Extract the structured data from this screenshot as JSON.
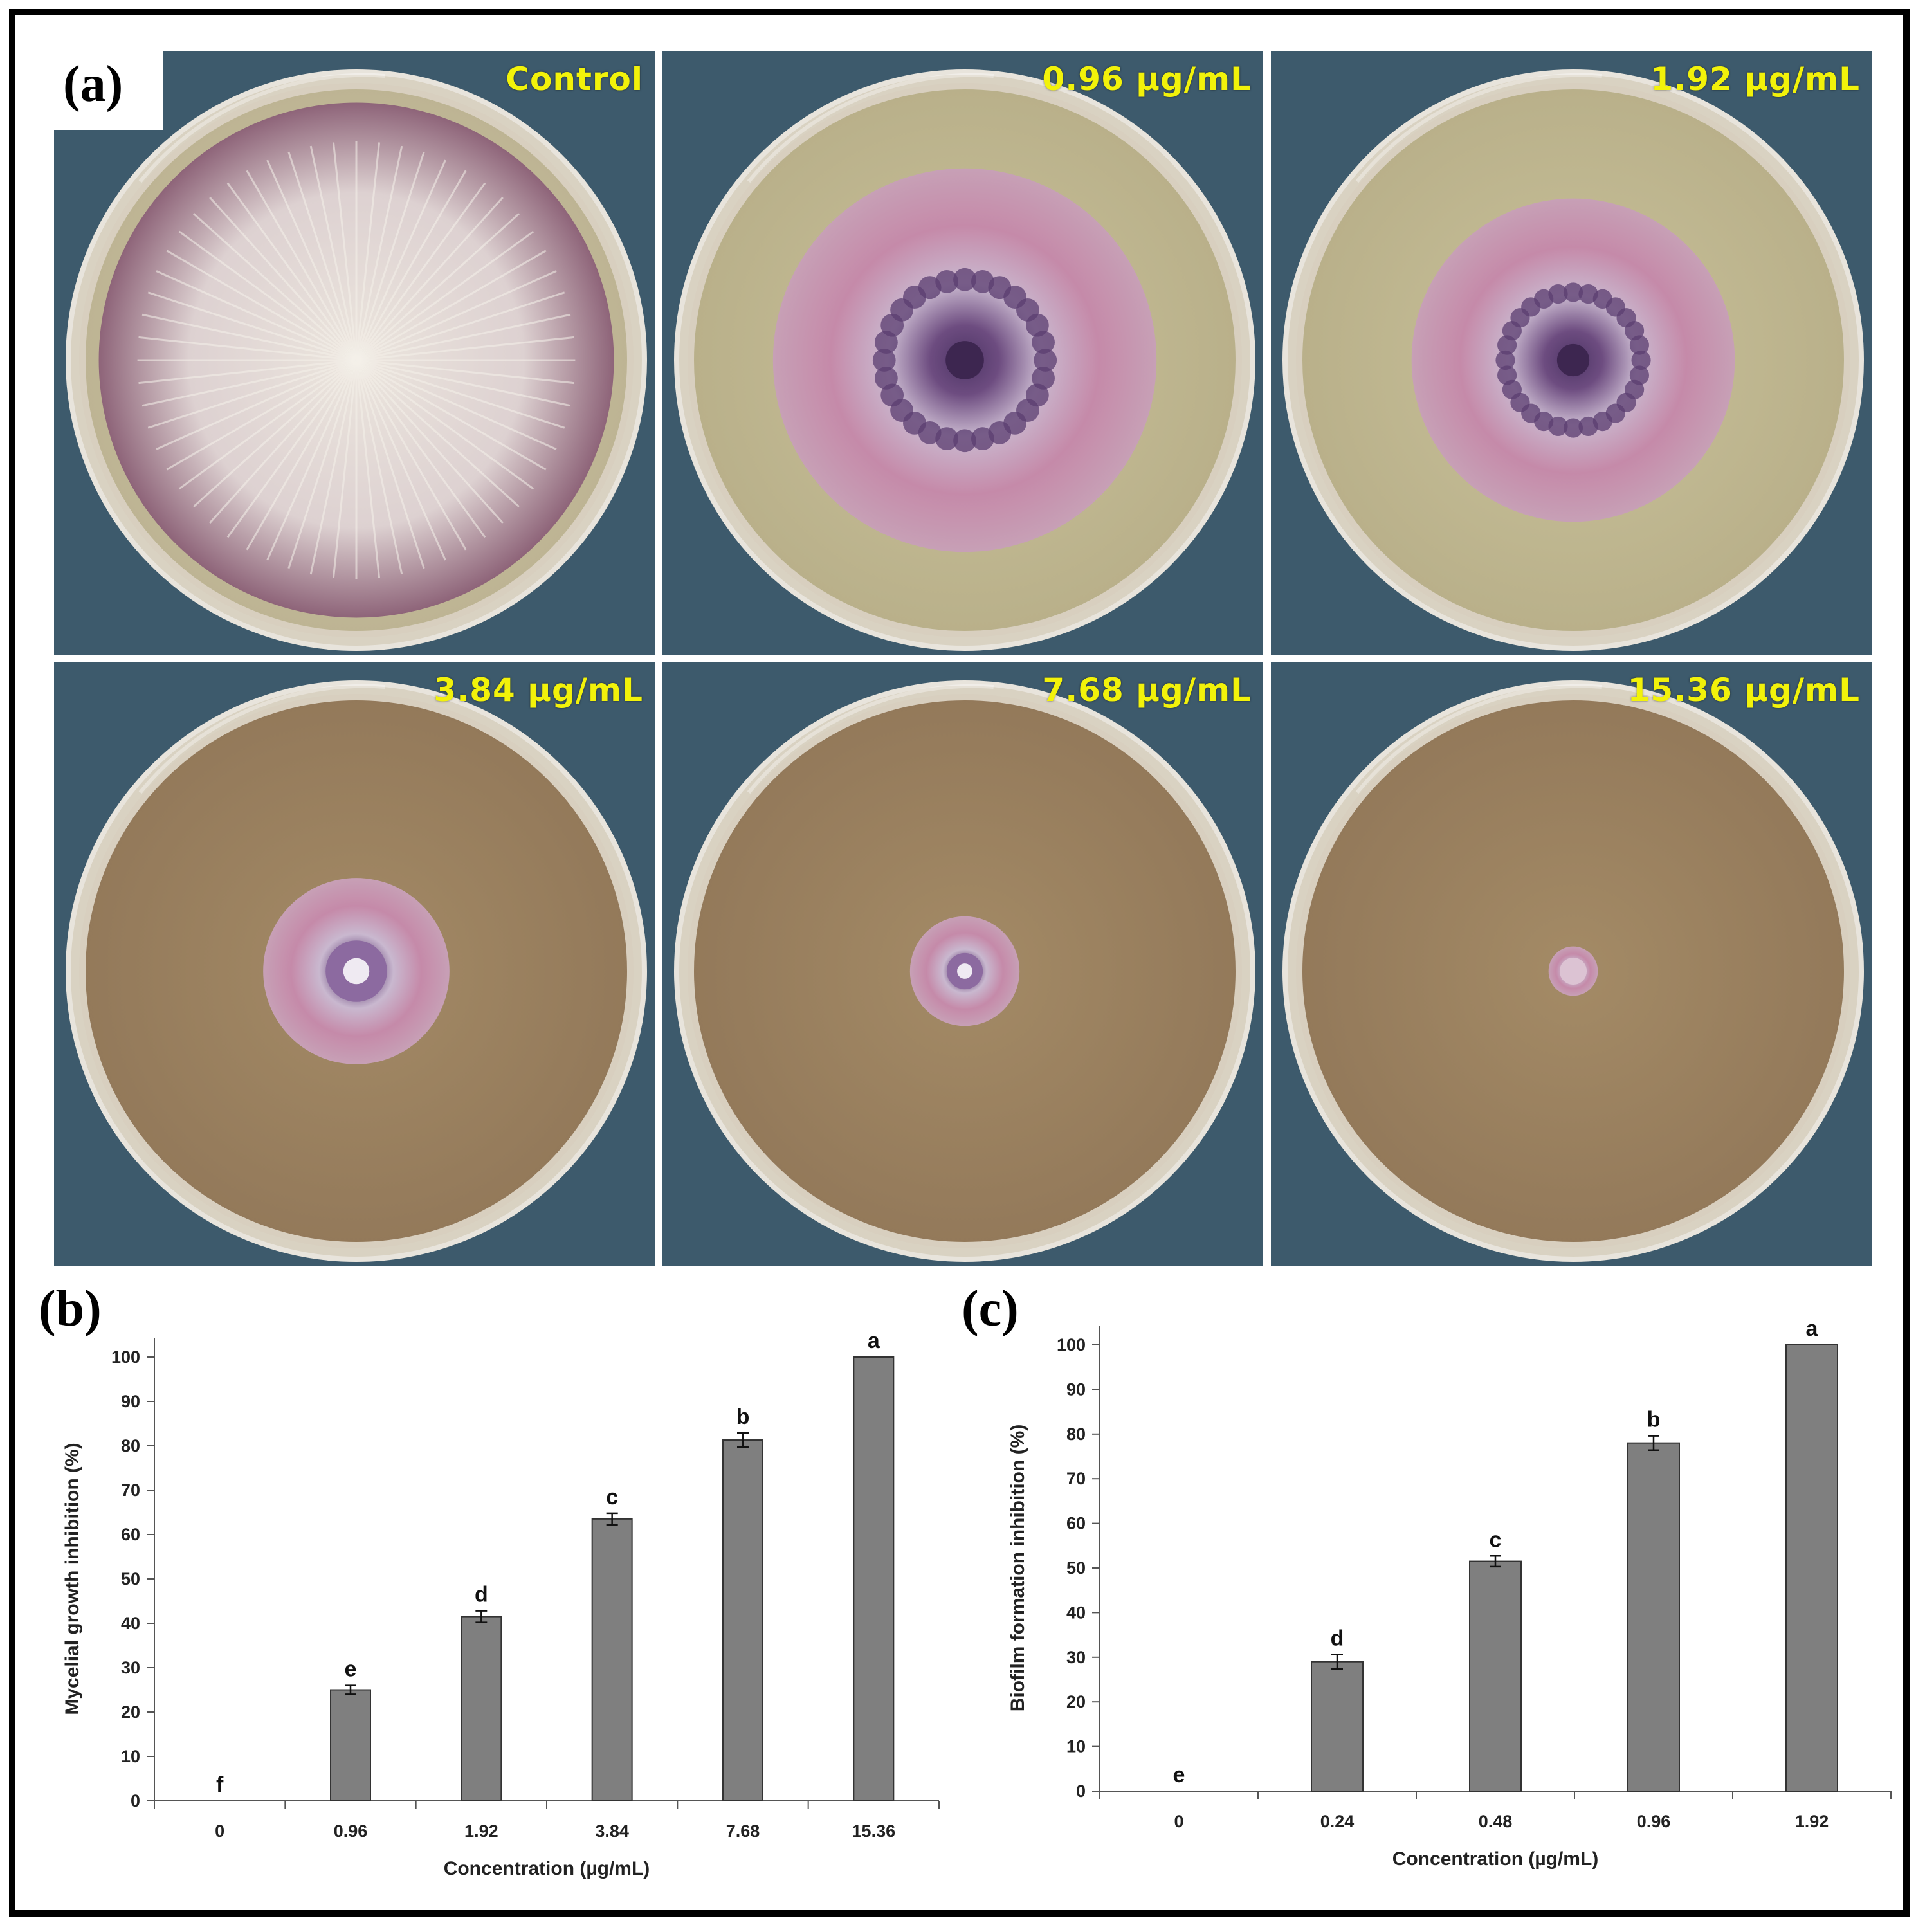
{
  "panel_a": {
    "label": "(a)",
    "plates": [
      {
        "label": "Control",
        "colony_diameter_fraction": 0.94,
        "type": "control"
      },
      {
        "label": "0.96 μg/mL",
        "colony_diameter_fraction": 0.7,
        "type": "ring"
      },
      {
        "label": "1.92 μg/mL",
        "colony_diameter_fraction": 0.59,
        "type": "ring"
      },
      {
        "label": "3.84 μg/mL",
        "colony_diameter_fraction": 0.34,
        "type": "small"
      },
      {
        "label": "7.68 μg/mL",
        "colony_diameter_fraction": 0.2,
        "type": "small"
      },
      {
        "label": "15.36 μg/mL",
        "colony_diameter_fraction": 0.09,
        "type": "tiny"
      }
    ]
  },
  "panel_b_label": "(b)",
  "panel_c_label": "(c)",
  "chart_data": [
    {
      "type": "bar",
      "panel": "b",
      "categories": [
        "0",
        "0.96",
        "1.92",
        "3.84",
        "7.68",
        "15.36"
      ],
      "values": [
        0,
        25,
        41.5,
        63.5,
        81.3,
        100
      ],
      "errors": [
        0,
        1.0,
        1.3,
        1.3,
        1.6,
        0
      ],
      "letters": [
        "f",
        "e",
        "d",
        "c",
        "b",
        "a"
      ],
      "xlabel": "Concentration (µg/mL)",
      "ylabel": "Mycelial growth inhibition (%)",
      "ylim": [
        0,
        100
      ],
      "yticks": [
        0,
        10,
        20,
        30,
        40,
        50,
        60,
        70,
        80,
        90,
        100
      ],
      "bar_color": "#7f7f7f",
      "grid": false
    },
    {
      "type": "bar",
      "panel": "c",
      "categories": [
        "0",
        "0.24",
        "0.48",
        "0.96",
        "1.92"
      ],
      "values": [
        0,
        29,
        51.5,
        78,
        100
      ],
      "errors": [
        0,
        1.6,
        1.2,
        1.6,
        0
      ],
      "letters": [
        "e",
        "d",
        "c",
        "b",
        "a"
      ],
      "xlabel": "Concentration (µg/mL)",
      "ylabel": "Biofilm formation inhibition (%)",
      "ylim": [
        0,
        100
      ],
      "yticks": [
        0,
        10,
        20,
        30,
        40,
        50,
        60,
        70,
        80,
        90,
        100
      ],
      "bar_color": "#7f7f7f",
      "grid": false
    }
  ]
}
